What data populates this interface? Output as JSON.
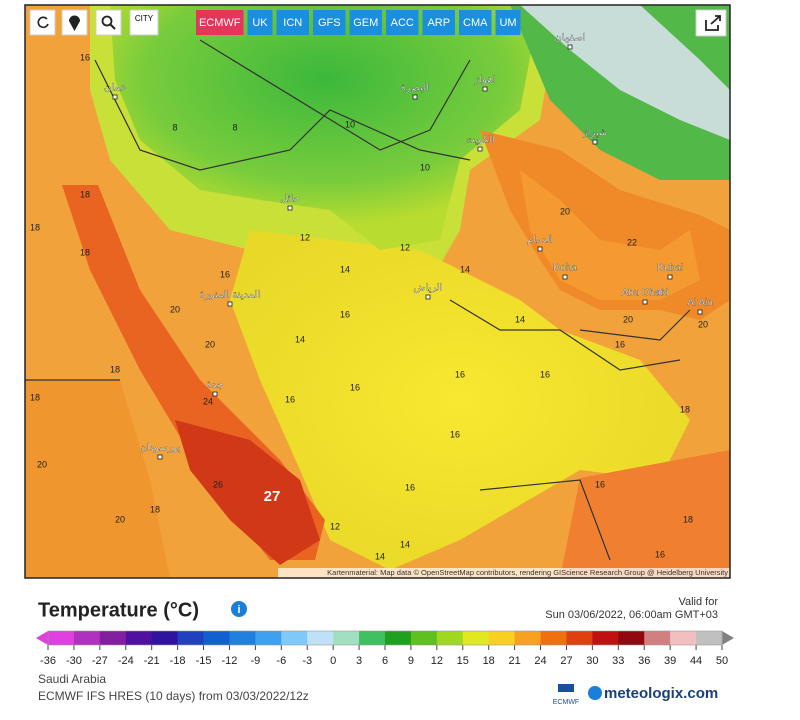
{
  "toolbar": {
    "city": "CITY",
    "models": [
      "ECMWF",
      "UK",
      "ICN",
      "GFS",
      "GEM",
      "ACC",
      "ARP",
      "CMA",
      "UM"
    ],
    "active": "ECMWF"
  },
  "map": {
    "places": [
      "Doha",
      "Dubai",
      "Abu Dhabi",
      "Al Ain",
      "الرياض",
      "جدة",
      "الكويت",
      "عمان",
      "بورسودان",
      "حائل",
      "المدينة المنورة",
      "الدمام",
      "شيراز",
      "اصفهان",
      "اهواز",
      "البصرة"
    ],
    "temps": [
      16,
      8,
      8,
      10,
      10,
      12,
      12,
      14,
      14,
      16,
      14,
      16,
      18,
      18,
      18,
      20,
      18,
      18,
      20,
      24,
      16,
      16,
      16,
      14,
      16,
      18,
      16,
      20,
      22,
      20,
      20,
      26,
      27,
      16,
      16,
      16,
      20,
      14,
      14,
      12,
      16,
      18,
      18,
      20
    ],
    "attribution": "Kartenmaterial: Map data © OpenStreetMap contributors, rendering GIScience Research Group @ Heidelberg University"
  },
  "legend": {
    "title": "Temperature (°C)",
    "valid_label": "Valid for",
    "valid_time": "Sun 03/06/2022, 06:00am GMT+03",
    "ticks": [
      -36,
      -30,
      -27,
      -24,
      -21,
      -18,
      -15,
      -12,
      -9,
      -6,
      -3,
      0,
      3,
      6,
      9,
      12,
      15,
      18,
      21,
      24,
      27,
      30,
      33,
      36,
      39,
      44,
      50
    ],
    "colors": [
      "#e040e0",
      "#b030c0",
      "#8020a0",
      "#5010a0",
      "#3014a0",
      "#2040c0",
      "#1060d0",
      "#2080e0",
      "#40a0f0",
      "#80c8f8",
      "#c0e0f8",
      "#a0e0c0",
      "#40c060",
      "#20a020",
      "#60c020",
      "#a0d820",
      "#e0e820",
      "#f8d020",
      "#f8a020",
      "#f07010",
      "#e04010",
      "#c01010",
      "#900810",
      "#d08080",
      "#f0c0c0",
      "#c0c0c0",
      "#808080"
    ]
  },
  "footer": {
    "region": "Saudi Arabia",
    "model_run": "ECMWF IFS HRES (10 days) from 03/03/2022/12z",
    "logo_small": "ECMWF",
    "brand": "meteologix.com"
  }
}
